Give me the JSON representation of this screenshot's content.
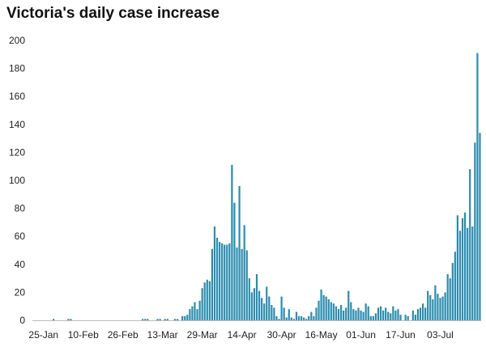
{
  "chart_data": {
    "type": "bar",
    "title": "Victoria's daily case increase",
    "xlabel": "",
    "ylabel": "",
    "ylim": [
      0,
      200
    ],
    "yticks": [
      0,
      20,
      40,
      60,
      80,
      100,
      120,
      140,
      160,
      180,
      200
    ],
    "grid": false,
    "legend": "none",
    "bar_color": "#2b8cae",
    "first_date": "2020-01-21",
    "x_tick_labels": [
      "25-Jan",
      "10-Feb",
      "26-Feb",
      "13-Mar",
      "29-Mar",
      "14-Apr",
      "30-Apr",
      "16-May",
      "01-Jun",
      "17-Jun",
      "03-Jul"
    ],
    "x_tick_indices": [
      4,
      20,
      36,
      52,
      68,
      84,
      100,
      116,
      132,
      148,
      164
    ],
    "values": [
      0,
      0,
      0,
      0,
      0,
      0,
      0,
      0,
      1,
      0,
      0,
      0,
      0,
      0,
      1,
      1,
      0,
      0,
      0,
      0,
      0,
      0,
      0,
      0,
      0,
      0,
      0,
      0,
      0,
      0,
      0,
      0,
      0,
      0,
      0,
      0,
      0,
      0,
      0,
      0,
      0,
      0,
      0,
      0,
      1,
      1,
      1,
      0,
      0,
      0,
      1,
      1,
      0,
      1,
      1,
      0,
      0,
      1,
      1,
      0,
      3,
      3,
      4,
      8,
      10,
      13,
      8,
      14,
      23,
      27,
      29,
      28,
      51,
      67,
      59,
      56,
      55,
      54,
      54,
      55,
      111,
      84,
      52,
      96,
      51,
      68,
      50,
      30,
      20,
      23,
      33,
      21,
      16,
      12,
      24,
      17,
      11,
      9,
      3,
      1,
      17,
      9,
      2,
      8,
      2,
      1,
      6,
      3,
      3,
      2,
      1,
      3,
      6,
      3,
      9,
      14,
      22,
      18,
      17,
      15,
      13,
      12,
      10,
      8,
      11,
      7,
      9,
      21,
      13,
      8,
      7,
      9,
      7,
      6,
      12,
      10,
      3,
      3,
      5,
      9,
      10,
      7,
      9,
      6,
      5,
      10,
      7,
      8,
      4,
      0,
      4,
      3,
      0,
      7,
      4,
      8,
      9,
      12,
      9,
      21,
      18,
      15,
      25,
      19,
      16,
      17,
      20,
      33,
      30,
      41,
      49,
      75,
      64,
      73,
      77,
      66,
      108,
      67,
      127,
      191,
      134
    ]
  }
}
